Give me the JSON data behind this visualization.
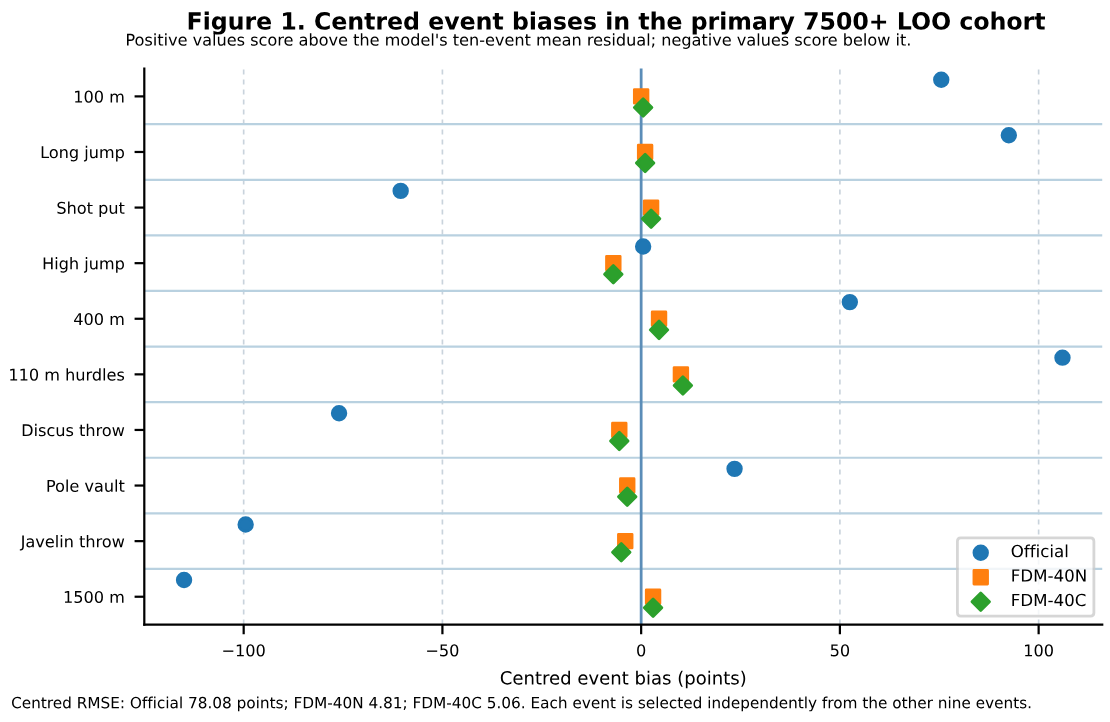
{
  "chart_data": {
    "type": "scatter",
    "orientation": "horizontal",
    "title": "Figure 1. Centred event biases in the primary 7500+ LOO cohort",
    "subtitle": "Positive values score above the model's ten-event mean residual; negative values score below it.",
    "xlabel": "Centred event bias (points)",
    "annotations": [
      "Centred RMSE: Official 78.08 points; FDM-40N 4.81; FDM-40C 5.06. Each event is selected independently from the other nine events."
    ],
    "categories": [
      "100 m",
      "Long jump",
      "Shot put",
      "High jump",
      "400 m",
      "110 m hurdles",
      "Discus throw",
      "Pole vault",
      "Javelin throw",
      "1500 m"
    ],
    "series": [
      {
        "name": "Official",
        "color": "#1f77b4",
        "marker": "circle",
        "values": [
          75.5,
          92.5,
          -60.5,
          0.5,
          52.5,
          106,
          -76,
          23.5,
          -99.5,
          -115
        ]
      },
      {
        "name": "FDM-40N",
        "color": "#ff7f0e",
        "marker": "square",
        "values": [
          0,
          1,
          2.5,
          -7,
          4.5,
          10,
          -5.5,
          -3.5,
          -4,
          3
        ]
      },
      {
        "name": "FDM-40C",
        "color": "#2ca02c",
        "marker": "diamond",
        "values": [
          0.5,
          1,
          2.5,
          -7,
          4.5,
          10.5,
          -5.5,
          -3.5,
          -5,
          3
        ]
      }
    ],
    "xlim": [
      -125,
      116
    ],
    "xticks": [
      {
        "value": -100,
        "label": "−100"
      },
      {
        "value": -50,
        "label": "−50"
      },
      0,
      50,
      100
    ],
    "ref_lines": [
      {
        "axis": "x",
        "value": 0,
        "color": "#5b8db8"
      }
    ],
    "grid": true,
    "legend": "bottom right"
  }
}
